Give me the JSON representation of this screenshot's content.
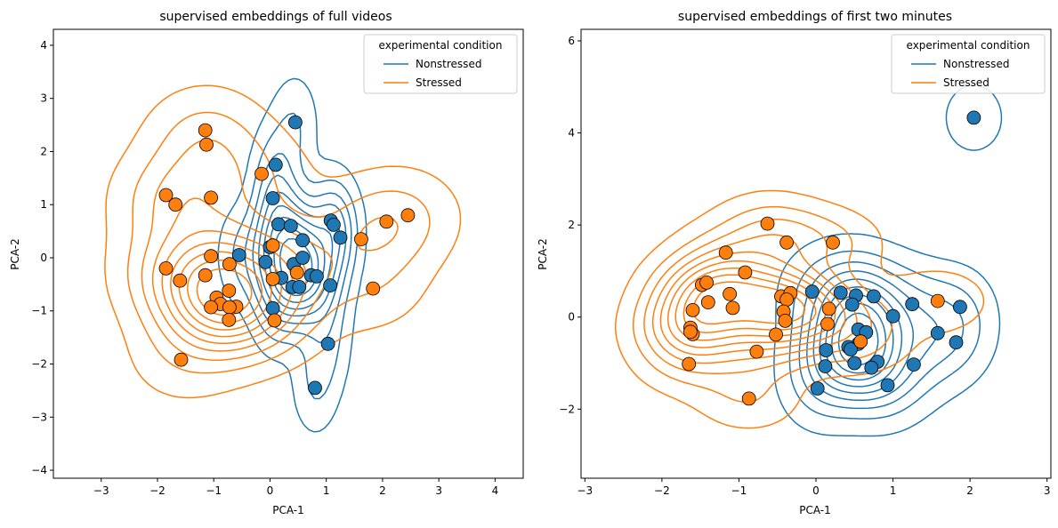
{
  "chart_data": [
    {
      "type": "scatter",
      "title": "supervised embeddings of full videos",
      "xlabel": "PCA-1",
      "ylabel": "PCA-2",
      "xlim": [
        -3.85,
        4.5
      ],
      "ylim": [
        -4.15,
        4.3
      ],
      "xticks": [
        -3,
        -2,
        -1,
        0,
        1,
        2,
        3,
        4
      ],
      "yticks": [
        -4,
        -3,
        -2,
        -1,
        0,
        1,
        2,
        3,
        4
      ],
      "legend": {
        "title": "experimental condition",
        "position": "top-right",
        "entries": [
          "Nonstressed",
          "Stressed"
        ]
      },
      "series": [
        {
          "name": "Nonstressed",
          "color": "#1f77b4",
          "points": [
            [
              0.45,
              2.55
            ],
            [
              0.1,
              1.75
            ],
            [
              0.05,
              1.12
            ],
            [
              0.15,
              0.63
            ],
            [
              0.37,
              0.6
            ],
            [
              1.08,
              0.7
            ],
            [
              1.13,
              0.62
            ],
            [
              1.25,
              0.38
            ],
            [
              0.58,
              0.33
            ],
            [
              0.0,
              0.2
            ],
            [
              -0.08,
              -0.08
            ],
            [
              0.42,
              -0.12
            ],
            [
              0.58,
              0.0
            ],
            [
              0.2,
              -0.38
            ],
            [
              0.73,
              -0.33
            ],
            [
              0.83,
              -0.35
            ],
            [
              0.4,
              -0.55
            ],
            [
              0.52,
              -0.55
            ],
            [
              1.07,
              -0.52
            ],
            [
              -0.55,
              0.05
            ],
            [
              0.05,
              -0.95
            ],
            [
              1.03,
              -1.62
            ],
            [
              0.8,
              -2.45
            ]
          ]
        },
        {
          "name": "Stressed",
          "color": "#ff7f0e",
          "points": [
            [
              -1.15,
              2.4
            ],
            [
              -1.13,
              2.13
            ],
            [
              -1.05,
              1.13
            ],
            [
              -1.85,
              1.18
            ],
            [
              -1.68,
              1.0
            ],
            [
              -0.15,
              1.58
            ],
            [
              0.05,
              0.23
            ],
            [
              -1.05,
              0.03
            ],
            [
              -0.72,
              -0.12
            ],
            [
              -1.15,
              -0.33
            ],
            [
              -1.6,
              -0.43
            ],
            [
              -1.85,
              -0.2
            ],
            [
              -0.73,
              -0.62
            ],
            [
              -0.95,
              -0.75
            ],
            [
              -0.88,
              -0.87
            ],
            [
              -1.05,
              -0.93
            ],
            [
              -0.6,
              -0.92
            ],
            [
              -0.72,
              -0.93
            ],
            [
              -0.73,
              -1.17
            ],
            [
              0.05,
              -0.4
            ],
            [
              0.48,
              -0.28
            ],
            [
              0.08,
              -1.18
            ],
            [
              -1.58,
              -1.92
            ],
            [
              1.62,
              0.35
            ],
            [
              1.83,
              -0.58
            ],
            [
              2.07,
              0.68
            ],
            [
              2.45,
              0.8
            ]
          ]
        }
      ],
      "density_contours": true
    },
    {
      "type": "scatter",
      "title": "supervised embeddings of first two minutes",
      "xlabel": "PCA-1",
      "ylabel": "PCA-2",
      "xlim": [
        -3.05,
        3.05
      ],
      "ylim": [
        -3.5,
        6.25
      ],
      "xticks": [
        -3,
        -2,
        -1,
        0,
        1,
        2,
        3
      ],
      "yticks": [
        -2,
        0,
        2,
        4,
        6
      ],
      "legend": {
        "title": "experimental condition",
        "position": "top-right",
        "entries": [
          "Nonstressed",
          "Stressed"
        ]
      },
      "series": [
        {
          "name": "Nonstressed",
          "color": "#1f77b4",
          "points": [
            [
              2.05,
              4.33
            ],
            [
              -0.05,
              0.55
            ],
            [
              0.32,
              0.53
            ],
            [
              0.52,
              0.47
            ],
            [
              0.75,
              0.45
            ],
            [
              0.47,
              0.27
            ],
            [
              1.25,
              0.28
            ],
            [
              1.87,
              0.22
            ],
            [
              1.0,
              0.02
            ],
            [
              0.55,
              -0.27
            ],
            [
              0.65,
              -0.33
            ],
            [
              1.58,
              -0.35
            ],
            [
              1.82,
              -0.55
            ],
            [
              0.55,
              -0.58
            ],
            [
              0.42,
              -0.65
            ],
            [
              0.45,
              -0.7
            ],
            [
              0.13,
              -0.72
            ],
            [
              0.12,
              -1.07
            ],
            [
              0.5,
              -1.0
            ],
            [
              0.8,
              -0.97
            ],
            [
              0.72,
              -1.1
            ],
            [
              1.27,
              -1.03
            ],
            [
              0.02,
              -1.55
            ],
            [
              0.93,
              -1.48
            ]
          ]
        },
        {
          "name": "Stressed",
          "color": "#ff7f0e",
          "points": [
            [
              -0.63,
              2.03
            ],
            [
              -0.38,
              1.62
            ],
            [
              0.22,
              1.62
            ],
            [
              -1.17,
              1.4
            ],
            [
              -0.92,
              0.97
            ],
            [
              -1.48,
              0.7
            ],
            [
              -1.42,
              0.75
            ],
            [
              -1.12,
              0.5
            ],
            [
              -0.45,
              0.45
            ],
            [
              -0.33,
              0.52
            ],
            [
              -0.38,
              0.38
            ],
            [
              -1.4,
              0.32
            ],
            [
              -1.08,
              0.2
            ],
            [
              -0.42,
              0.12
            ],
            [
              0.17,
              0.18
            ],
            [
              -1.6,
              0.15
            ],
            [
              -0.4,
              -0.08
            ],
            [
              -1.63,
              -0.23
            ],
            [
              -1.6,
              -0.37
            ],
            [
              -1.63,
              -0.32
            ],
            [
              0.15,
              -0.15
            ],
            [
              -0.52,
              -0.38
            ],
            [
              0.58,
              -0.53
            ],
            [
              -0.77,
              -0.75
            ],
            [
              -1.65,
              -1.02
            ],
            [
              -0.87,
              -1.77
            ],
            [
              1.58,
              0.35
            ]
          ]
        }
      ],
      "density_contours": true
    }
  ]
}
